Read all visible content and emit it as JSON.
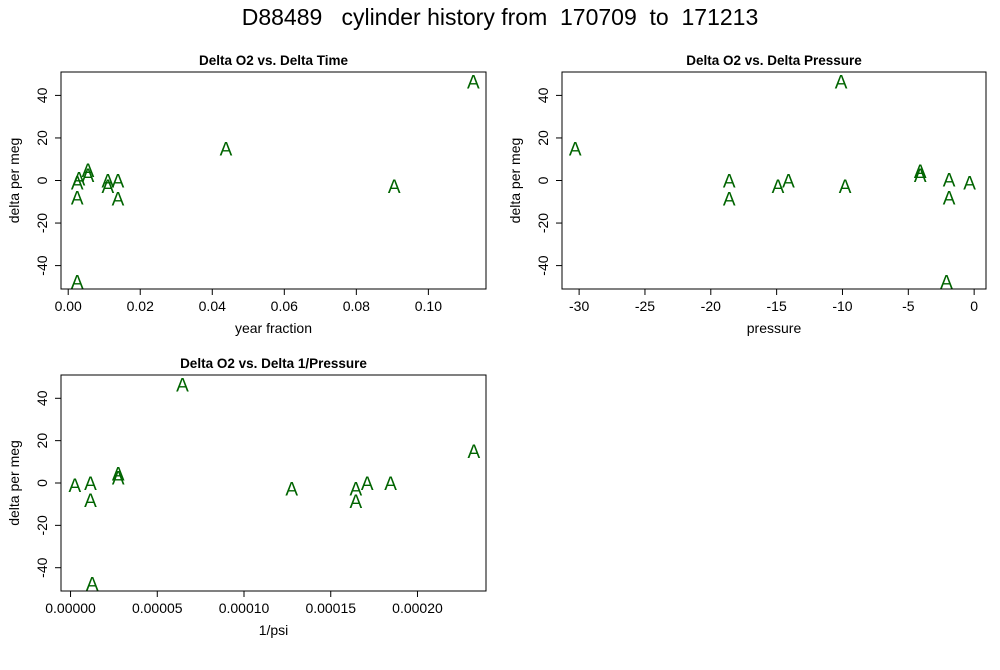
{
  "page": {
    "title": "D88489   cylinder history from  170709  to  171213"
  },
  "style": {
    "marker_color": "#006400",
    "marker_glyph": "A"
  },
  "chart_data": [
    {
      "type": "scatter",
      "title": "Delta O2 vs. Delta Time",
      "xlabel": "year fraction",
      "ylabel": "delta per meg",
      "xlim": [
        -0.002,
        0.116
      ],
      "ylim": [
        -51,
        51
      ],
      "xticks": [
        0.0,
        0.02,
        0.04,
        0.06,
        0.08,
        0.1
      ],
      "xtick_labels": [
        "0.00",
        "0.02",
        "0.04",
        "0.06",
        "0.08",
        "0.10"
      ],
      "yticks": [
        -40,
        -20,
        0,
        20,
        40
      ],
      "ytick_labels": [
        "-40",
        "-20",
        "0",
        "20",
        "40"
      ],
      "points": [
        {
          "x": 0.0025,
          "y": -47.5
        },
        {
          "x": 0.0025,
          "y": -8
        },
        {
          "x": 0.0025,
          "y": -1
        },
        {
          "x": 0.003,
          "y": 1
        },
        {
          "x": 0.0055,
          "y": 2.5
        },
        {
          "x": 0.0055,
          "y": 5
        },
        {
          "x": 0.011,
          "y": 0
        },
        {
          "x": 0.011,
          "y": -2.5
        },
        {
          "x": 0.0138,
          "y": 0
        },
        {
          "x": 0.0138,
          "y": -8.5
        },
        {
          "x": 0.0438,
          "y": 15
        },
        {
          "x": 0.0905,
          "y": -2.5
        },
        {
          "x": 0.1125,
          "y": 46.5
        }
      ]
    },
    {
      "type": "scatter",
      "title": "Delta O2 vs. Delta Pressure",
      "xlabel": "pressure",
      "ylabel": "delta per meg",
      "xlim": [
        -31.3,
        0.9
      ],
      "ylim": [
        -51,
        51
      ],
      "xticks": [
        -30,
        -25,
        -20,
        -15,
        -10,
        -5,
        0
      ],
      "xtick_labels": [
        "-30",
        "-25",
        "-20",
        "-15",
        "-10",
        "-5",
        "0"
      ],
      "yticks": [
        -40,
        -20,
        0,
        20,
        40
      ],
      "ytick_labels": [
        "-40",
        "-20",
        "0",
        "20",
        "40"
      ],
      "points": [
        {
          "x": -30.3,
          "y": 15
        },
        {
          "x": -18.6,
          "y": 0
        },
        {
          "x": -18.6,
          "y": -8.5
        },
        {
          "x": -14.9,
          "y": -2.5
        },
        {
          "x": -14.1,
          "y": 0
        },
        {
          "x": -10.1,
          "y": 46.5
        },
        {
          "x": -9.8,
          "y": -2.5
        },
        {
          "x": -4.1,
          "y": 2.5
        },
        {
          "x": -4.1,
          "y": 4.5
        },
        {
          "x": -2.1,
          "y": -47.5
        },
        {
          "x": -1.9,
          "y": 0.5
        },
        {
          "x": -1.9,
          "y": -8
        },
        {
          "x": -0.35,
          "y": -1
        }
      ]
    },
    {
      "type": "scatter",
      "title": "Delta O2 vs. Delta 1/Pressure",
      "xlabel": "1/psi",
      "ylabel": "delta per meg",
      "xlim": [
        -5.5e-06,
        0.0002395
      ],
      "ylim": [
        -51,
        51
      ],
      "xticks": [
        0.0,
        5e-05,
        0.0001,
        0.00015,
        0.0002
      ],
      "xtick_labels": [
        "0.00000",
        "0.00005",
        "0.00010",
        "0.00015",
        "0.00020"
      ],
      "yticks": [
        -40,
        -20,
        0,
        20,
        40
      ],
      "ytick_labels": [
        "-40",
        "-20",
        "0",
        "20",
        "40"
      ],
      "points": [
        {
          "x": 2.5e-06,
          "y": -1
        },
        {
          "x": 1.15e-05,
          "y": 0
        },
        {
          "x": 1.15e-05,
          "y": -8
        },
        {
          "x": 1.25e-05,
          "y": -47.5
        },
        {
          "x": 2.75e-05,
          "y": 2.5
        },
        {
          "x": 2.75e-05,
          "y": 4.5
        },
        {
          "x": 6.45e-05,
          "y": 46.5
        },
        {
          "x": 0.0001275,
          "y": -2.5
        },
        {
          "x": 0.0001645,
          "y": -2.5
        },
        {
          "x": 0.0001645,
          "y": -8.5
        },
        {
          "x": 0.000171,
          "y": 0
        },
        {
          "x": 0.0001845,
          "y": 0
        },
        {
          "x": 0.0002325,
          "y": 15
        }
      ]
    }
  ]
}
